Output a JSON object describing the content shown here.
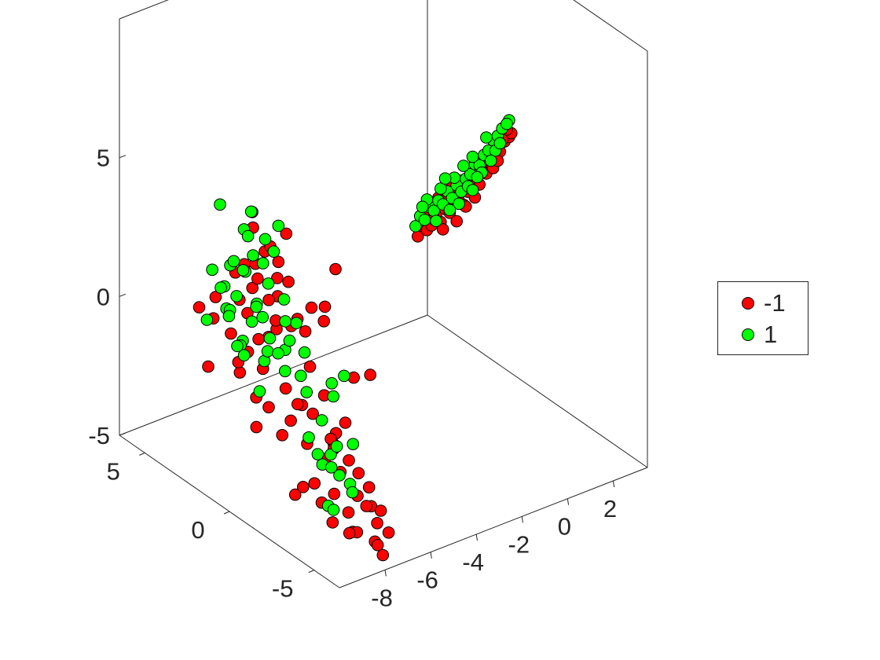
{
  "chart_data": {
    "type": "scatter3d",
    "title": "",
    "xlabel": "",
    "ylabel": "",
    "zlabel": "",
    "xlim": [
      -10,
      3.5
    ],
    "ylim": [
      -6.5,
      6.5
    ],
    "zlim": [
      -5,
      10
    ],
    "x_ticks": [
      "-8",
      "-6",
      "-4",
      "-2",
      "0",
      "2"
    ],
    "y_ticks": [
      "-5",
      "0",
      "5"
    ],
    "z_ticks": [
      "-5",
      "0",
      "5"
    ],
    "grid": false,
    "legend_position": "right",
    "series": [
      {
        "name": "-1",
        "color": "#ff0000",
        "points": [
          [
            -8.8,
            -0.7,
            1.2
          ],
          [
            -8.5,
            0.3,
            0.6
          ],
          [
            -8.9,
            -0.5,
            0.0
          ],
          [
            -8.3,
            1.2,
            -0.3
          ],
          [
            -8.6,
            -0.9,
            1.5
          ],
          [
            -8.7,
            -1.1,
            2.8
          ],
          [
            -8.4,
            0.8,
            2.2
          ],
          [
            -8.2,
            -0.4,
            3.0
          ],
          [
            -8.9,
            0.6,
            3.3
          ],
          [
            -8.5,
            -1.3,
            -0.5
          ],
          [
            -8.1,
            1.5,
            0.9
          ],
          [
            -8.8,
            1.0,
            -0.8
          ],
          [
            -8.6,
            -0.2,
            4.0
          ],
          [
            -8.3,
            -0.6,
            3.7
          ],
          [
            -8.7,
            1.4,
            2.6
          ],
          [
            -8.4,
            -1.5,
            1.8
          ],
          [
            -8.9,
            -0.1,
            -1.2
          ],
          [
            -8.2,
            0.1,
            2.0
          ],
          [
            -8.6,
            1.8,
            0.2
          ],
          [
            -8.5,
            -2.0,
            2.3
          ],
          [
            -8.7,
            0.4,
            5.2
          ],
          [
            -8.4,
            -1.2,
            5.0
          ],
          [
            -8.8,
            -0.8,
            4.5
          ],
          [
            -8.3,
            0.9,
            4.3
          ],
          [
            -8.6,
            -1.6,
            3.5
          ],
          [
            -8.9,
            2.3,
            1.4
          ],
          [
            -8.2,
            1.9,
            -1.0
          ],
          [
            -8.5,
            -0.3,
            -1.6
          ],
          [
            -8.4,
            -2.6,
            0.8
          ],
          [
            -8.7,
            2.7,
            0.4
          ],
          [
            -9.0,
            -3.5,
            3.5
          ],
          [
            -8.9,
            -3.0,
            2.4
          ],
          [
            -9.1,
            3.0,
            0.8
          ],
          [
            -9.0,
            2.6,
            -1.2
          ],
          [
            -8.0,
            2.1,
            1.1
          ],
          [
            -9.2,
            -4.5,
            3.5
          ],
          [
            -8.0,
            -1.9,
            -2.4
          ],
          [
            -8.3,
            0.7,
            -2.8
          ],
          [
            -8.6,
            -2.4,
            -0.6
          ],
          [
            -7.9,
            1.3,
            2.7
          ],
          [
            -8.8,
            -1.5,
            -2.0
          ],
          [
            -8.5,
            -3.0,
            -3.2
          ],
          [
            -8.2,
            -2.5,
            -1.0
          ],
          [
            -8.0,
            -3.6,
            -1.3
          ],
          [
            -8.6,
            -2.0,
            -4.0
          ],
          [
            -8.4,
            -3.3,
            -3.8
          ],
          [
            -7.9,
            -2.8,
            -2.6
          ],
          [
            -7.5,
            -2.8,
            -2.2
          ],
          [
            -8.1,
            -4.0,
            -2.5
          ],
          [
            -8.6,
            -4.3,
            -3.0
          ],
          [
            -7.8,
            -4.6,
            -3.2
          ],
          [
            -7.6,
            -3.8,
            -4.2
          ],
          [
            -8.2,
            -5.2,
            -2.0
          ],
          [
            -7.5,
            -5.0,
            -3.5
          ],
          [
            -8.4,
            -4.9,
            -1.6
          ],
          [
            -8.6,
            -5.4,
            -3.9
          ],
          [
            -7.7,
            -5.5,
            -4.5
          ],
          [
            -7.9,
            -5.9,
            -3.6
          ],
          [
            -8.1,
            -6.2,
            -4.2
          ],
          [
            -7.8,
            -6.1,
            -4.7
          ],
          [
            -7.3,
            -5.3,
            -3.6
          ],
          [
            -7.6,
            -4.3,
            -4.7
          ],
          [
            -8.3,
            -5.8,
            -2.9
          ],
          [
            -7.4,
            -5.9,
            -4.1
          ],
          [
            -9.0,
            -5.5,
            0.2
          ],
          [
            -9.3,
            -6.4,
            2.3
          ],
          [
            -9.6,
            -5.1,
            4.4
          ],
          [
            -8.7,
            -6.5,
            -1.8
          ],
          [
            -9.8,
            -6.0,
            6.2
          ],
          [
            -8.5,
            -6.3,
            2.1
          ],
          [
            -7.8,
            -3.2,
            -2.1
          ],
          [
            -7.9,
            -1.2,
            -1.3
          ],
          [
            -8.6,
            -4.1,
            -1.1
          ],
          [
            -8.0,
            -3.4,
            -4.6
          ],
          [
            -8.4,
            -2.2,
            -3.7
          ],
          [
            -8.3,
            -4.8,
            -4.3
          ],
          [
            -7.7,
            -2.5,
            -0.5
          ],
          [
            -8.2,
            -1.2,
            -1.8
          ],
          [
            -7.6,
            0.5,
            0.9
          ],
          [
            -8.1,
            0.9,
            2.4
          ],
          [
            -1.0,
            1.0,
            1.6
          ],
          [
            -0.8,
            1.0,
            1.9
          ],
          [
            -0.6,
            1.0,
            1.7
          ],
          [
            -0.4,
            1.0,
            1.8
          ],
          [
            -0.2,
            1.0,
            2.1
          ],
          [
            0.0,
            1.0,
            1.8
          ],
          [
            0.2,
            1.0,
            2.2
          ],
          [
            0.4,
            1.0,
            2.0
          ],
          [
            0.6,
            1.0,
            2.4
          ],
          [
            0.8,
            1.0,
            2.3
          ],
          [
            1.0,
            1.0,
            2.1
          ],
          [
            1.2,
            1.0,
            2.5
          ],
          [
            1.4,
            1.0,
            2.6
          ],
          [
            1.6,
            1.0,
            2.9
          ],
          [
            1.8,
            1.0,
            3.1
          ],
          [
            2.0,
            1.0,
            2.9
          ],
          [
            2.2,
            1.0,
            3.2
          ],
          [
            2.4,
            1.0,
            3.5
          ],
          [
            2.6,
            1.0,
            3.5
          ],
          [
            2.8,
            1.0,
            3.8
          ],
          [
            -0.1,
            1.0,
            2.7
          ],
          [
            0.5,
            1.0,
            2.9
          ],
          [
            1.1,
            1.0,
            2.0
          ],
          [
            1.7,
            1.0,
            2.6
          ],
          [
            0.9,
            1.0,
            3.0
          ],
          [
            2.3,
            1.0,
            3.0
          ],
          [
            -0.5,
            1.0,
            2.4
          ],
          [
            1.5,
            1.0,
            2.2
          ],
          [
            0.7,
            1.0,
            1.6
          ],
          [
            2.0,
            1.0,
            3.6
          ],
          [
            3.0,
            1.0,
            3.9
          ],
          [
            3.1,
            1.0,
            4.0
          ],
          [
            2.9,
            1.0,
            4.2
          ],
          [
            2.7,
            1.0,
            3.9
          ],
          [
            0.1,
            1.0,
            1.5
          ],
          [
            0.3,
            1.0,
            2.6
          ],
          [
            1.3,
            1.0,
            2.9
          ],
          [
            1.9,
            1.0,
            3.4
          ],
          [
            2.5,
            1.0,
            3.2
          ],
          [
            -0.3,
            1.0,
            2.0
          ]
        ]
      },
      {
        "name": "1",
        "color": "#00ff00",
        "points": [
          [
            -8.9,
            0.7,
            0.5
          ],
          [
            -8.6,
            -0.5,
            1.0
          ],
          [
            -8.4,
            0.2,
            1.4
          ],
          [
            -8.7,
            1.1,
            0.1
          ],
          [
            -8.3,
            -1.0,
            0.7
          ],
          [
            -8.8,
            0.0,
            2.1
          ],
          [
            -8.5,
            1.6,
            1.6
          ],
          [
            -8.2,
            -0.8,
            2.4
          ],
          [
            -9.0,
            1.3,
            3.0
          ],
          [
            -8.6,
            -1.4,
            0.2
          ],
          [
            -8.1,
            0.5,
            -0.4
          ],
          [
            -8.9,
            -0.3,
            -0.9
          ],
          [
            -8.4,
            1.9,
            2.7
          ],
          [
            -8.7,
            -1.8,
            1.5
          ],
          [
            -8.3,
            0.9,
            3.3
          ],
          [
            -8.6,
            0.6,
            5.1
          ],
          [
            -8.3,
            -0.6,
            5.0
          ],
          [
            -8.8,
            -1.0,
            4.4
          ],
          [
            -8.4,
            1.3,
            4.1
          ],
          [
            -8.9,
            -0.5,
            3.8
          ],
          [
            -8.5,
            2.2,
            0.9
          ],
          [
            -8.1,
            1.7,
            -0.7
          ],
          [
            -8.7,
            -2.2,
            2.3
          ],
          [
            -8.4,
            -2.4,
            -0.2
          ],
          [
            -8.9,
            2.5,
            2.3
          ],
          [
            -7.6,
            2.3,
            1.9
          ],
          [
            -7.9,
            2.8,
            0.4
          ],
          [
            -8.2,
            1.1,
            0.8
          ],
          [
            -8.6,
            0.3,
            1.8
          ],
          [
            -8.4,
            -0.1,
            0.3
          ],
          [
            -9.3,
            1.5,
            5.2
          ],
          [
            -9.1,
            -0.9,
            4.9
          ],
          [
            -9.4,
            0.0,
            3.5
          ],
          [
            -9.5,
            2.0,
            0.9
          ],
          [
            -8.0,
            3.0,
            1.2
          ],
          [
            -7.8,
            2.5,
            -0.8
          ],
          [
            -7.5,
            3.4,
            -0.2
          ],
          [
            -9.2,
            -1.8,
            1.2
          ],
          [
            -8.8,
            -2.6,
            0.6
          ],
          [
            -8.0,
            0.4,
            2.4
          ],
          [
            -8.6,
            -2.8,
            -1.6
          ],
          [
            -8.3,
            -3.2,
            -2.5
          ],
          [
            -8.8,
            -3.6,
            -1.8
          ],
          [
            -8.1,
            -2.9,
            -1.1
          ],
          [
            -7.7,
            -3.4,
            -3.0
          ],
          [
            -7.9,
            -3.0,
            -4.2
          ],
          [
            -8.5,
            -4.0,
            -2.2
          ],
          [
            -7.6,
            -2.9,
            -0.4
          ],
          [
            -8.7,
            -4.4,
            -3.5
          ],
          [
            -8.2,
            -4.7,
            -2.6
          ],
          [
            -7.8,
            -4.3,
            -3.2
          ],
          [
            -8.9,
            -4.5,
            -1.4
          ],
          [
            -9.3,
            -5.4,
            -0.6
          ],
          [
            -9.5,
            -6.1,
            2.3
          ],
          [
            -7.4,
            -3.8,
            -1.8
          ],
          [
            -7.0,
            -2.0,
            -0.5
          ],
          [
            -7.3,
            -0.8,
            0.2
          ],
          [
            -7.7,
            -0.2,
            1.2
          ],
          [
            -8.0,
            1.6,
            3.6
          ],
          [
            -8.6,
            2.4,
            1.6
          ],
          [
            -1.1,
            1.0,
            2.0
          ],
          [
            -0.9,
            1.0,
            2.3
          ],
          [
            -0.7,
            1.0,
            2.1
          ],
          [
            -0.5,
            1.0,
            2.5
          ],
          [
            -0.3,
            1.0,
            2.3
          ],
          [
            -0.1,
            1.0,
            2.6
          ],
          [
            0.1,
            1.0,
            2.4
          ],
          [
            0.3,
            1.0,
            2.8
          ],
          [
            0.5,
            1.0,
            2.5
          ],
          [
            0.7,
            1.0,
            2.9
          ],
          [
            0.9,
            1.0,
            2.6
          ],
          [
            1.1,
            1.0,
            3.0
          ],
          [
            1.3,
            1.0,
            3.1
          ],
          [
            1.5,
            1.0,
            3.4
          ],
          [
            1.7,
            1.0,
            3.3
          ],
          [
            1.9,
            1.0,
            3.6
          ],
          [
            2.1,
            1.0,
            3.7
          ],
          [
            2.3,
            1.0,
            4.0
          ],
          [
            2.5,
            1.0,
            4.1
          ],
          [
            2.7,
            1.0,
            4.3
          ],
          [
            0.0,
            1.0,
            3.0
          ],
          [
            0.6,
            1.0,
            3.2
          ],
          [
            1.2,
            1.0,
            2.7
          ],
          [
            1.8,
            1.0,
            3.0
          ],
          [
            2.4,
            1.0,
            3.6
          ],
          [
            -0.6,
            1.0,
            2.8
          ],
          [
            0.8,
            1.0,
            2.2
          ],
          [
            1.4,
            1.0,
            3.7
          ],
          [
            2.0,
            1.0,
            4.2
          ],
          [
            2.6,
            1.0,
            3.8
          ],
          [
            3.0,
            1.0,
            4.5
          ],
          [
            2.9,
            1.0,
            4.4
          ],
          [
            -0.2,
            1.0,
            1.9
          ],
          [
            0.4,
            1.0,
            2.1
          ],
          [
            1.0,
            1.0,
            3.5
          ],
          [
            1.6,
            1.0,
            2.9
          ],
          [
            2.2,
            1.0,
            3.3
          ],
          [
            -0.8,
            1.0,
            2.6
          ],
          [
            0.2,
            1.0,
            3.3
          ],
          [
            1.4,
            1.0,
            2.5
          ]
        ]
      }
    ]
  },
  "legend": {
    "items": [
      {
        "label": "-1",
        "color": "#ff0000"
      },
      {
        "label": "1",
        "color": "#00ff00"
      }
    ]
  }
}
